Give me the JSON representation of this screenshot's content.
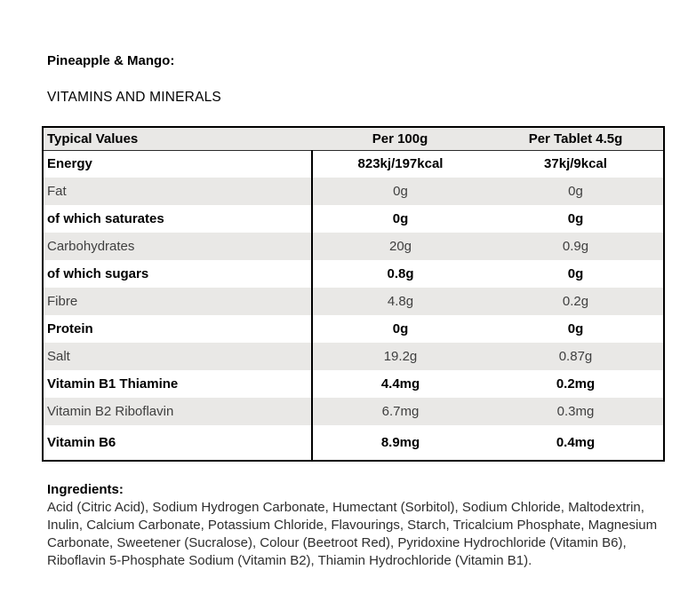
{
  "page": {
    "product_title": "Pineapple & Mango:",
    "section_title": "VITAMINS AND MINERALS"
  },
  "table": {
    "headers": [
      "Typical Values",
      "Per 100g",
      "Per Tablet 4.5g"
    ],
    "rows": [
      {
        "label": "Energy",
        "per_100g": "823kj/197kcal",
        "per_tablet": "37kj/9kcal",
        "bold": true
      },
      {
        "label": "Fat",
        "per_100g": "0g",
        "per_tablet": "0g",
        "bold": false
      },
      {
        "label": "of which saturates",
        "per_100g": "0g",
        "per_tablet": "0g",
        "bold": true
      },
      {
        "label": "Carbohydrates",
        "per_100g": "20g",
        "per_tablet": "0.9g",
        "bold": false
      },
      {
        "label": "of which sugars",
        "per_100g": "0.8g",
        "per_tablet": "0g",
        "bold": true
      },
      {
        "label": "Fibre",
        "per_100g": "4.8g",
        "per_tablet": "0.2g",
        "bold": false
      },
      {
        "label": "Protein",
        "per_100g": "0g",
        "per_tablet": "0g",
        "bold": true
      },
      {
        "label": "Salt",
        "per_100g": "19.2g",
        "per_tablet": "0.87g",
        "bold": false
      },
      {
        "label": "Vitamin B1 Thiamine",
        "per_100g": "4.4mg",
        "per_tablet": "0.2mg",
        "bold": true
      },
      {
        "label": "Vitamin B2 Riboflavin",
        "per_100g": "6.7mg",
        "per_tablet": "0.3mg",
        "bold": false
      },
      {
        "label": "Vitamin B6",
        "per_100g": "8.9mg",
        "per_tablet": "0.4mg",
        "bold": true
      }
    ]
  },
  "ingredients": {
    "heading": "Ingredients:",
    "text": "Acid (Citric Acid), Sodium Hydrogen Carbonate, Humectant (Sorbitol), Sodium Chloride, Maltodextrin, Inulin, Calcium Carbonate, Potassium Chloride, Flavourings, Starch, Tricalcium Phosphate, Magnesium Carbonate, Sweetener (Sucralose), Colour (Beetroot Red), Pyridoxine Hydrochloride (Vitamin B6), Riboflavin 5-Phosphate Sodium (Vitamin B2), Thiamin Hydrochloride (Vitamin B1)."
  },
  "colors": {
    "row_shade": "#e9e8e6",
    "table_border": "#000000",
    "regular_text": "#3f3f3f",
    "bold_text": "#000000"
  }
}
